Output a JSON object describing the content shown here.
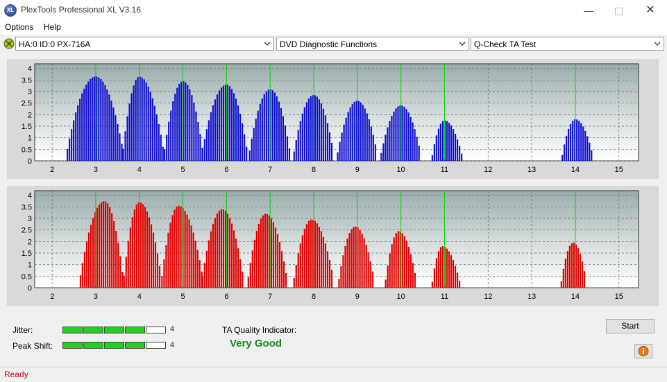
{
  "window": {
    "title": "PlexTools Professional XL V3.16",
    "icon_text": "XL"
  },
  "menu": [
    "Options",
    "Help"
  ],
  "toolbar": {
    "drive": "HA:0 ID:0  PX-716A",
    "function": "DVD Diagnostic Functions",
    "test": "Q-Check TA Test"
  },
  "chart_data": [
    {
      "type": "bar",
      "name_color": "#1010d0",
      "x_ticks": [
        2,
        3,
        4,
        5,
        6,
        7,
        8,
        9,
        10,
        11,
        12,
        13,
        14,
        15
      ],
      "y_ticks": [
        0,
        0.5,
        1,
        1.5,
        2,
        2.5,
        3,
        3.5,
        4
      ],
      "ylim": [
        0,
        4.2
      ],
      "xlim": [
        1.6,
        15.45
      ],
      "grid": true,
      "peaks": [
        {
          "center": 3.0,
          "height": 3.65,
          "start": 2.35,
          "end": 3.62
        },
        {
          "center": 4.0,
          "height": 3.65,
          "start": 3.63,
          "end": 4.55
        },
        {
          "center": 5.0,
          "height": 3.45,
          "start": 4.58,
          "end": 5.45
        },
        {
          "center": 6.0,
          "height": 3.3,
          "start": 5.45,
          "end": 6.47
        },
        {
          "center": 7.0,
          "height": 3.1,
          "start": 6.53,
          "end": 7.45
        },
        {
          "center": 8.0,
          "height": 2.85,
          "start": 7.55,
          "end": 8.45
        },
        {
          "center": 9.0,
          "height": 2.6,
          "start": 8.55,
          "end": 9.45
        },
        {
          "center": 10.0,
          "height": 2.4,
          "start": 9.55,
          "end": 10.45
        },
        {
          "center": 11.0,
          "height": 1.75,
          "start": 10.72,
          "end": 11.4
        },
        {
          "center": 14.0,
          "height": 1.8,
          "start": 13.7,
          "end": 14.4
        }
      ],
      "green_lines": [
        3,
        4,
        5,
        6,
        7,
        8,
        9,
        10,
        11,
        14
      ]
    },
    {
      "type": "bar",
      "name_color": "#e00000",
      "x_ticks": [
        2,
        3,
        4,
        5,
        6,
        7,
        8,
        9,
        10,
        11,
        12,
        13,
        14,
        15
      ],
      "y_ticks": [
        0,
        0.5,
        1,
        1.5,
        2,
        2.5,
        3,
        3.5,
        4
      ],
      "ylim": [
        0,
        4.2
      ],
      "xlim": [
        1.6,
        15.45
      ],
      "grid": true,
      "peaks": [
        {
          "center": 3.2,
          "height": 3.75,
          "start": 2.65,
          "end": 3.62
        },
        {
          "center": 4.0,
          "height": 3.7,
          "start": 3.65,
          "end": 4.5
        },
        {
          "center": 4.9,
          "height": 3.55,
          "start": 4.52,
          "end": 5.45
        },
        {
          "center": 5.9,
          "height": 3.4,
          "start": 5.45,
          "end": 6.38
        },
        {
          "center": 6.9,
          "height": 3.2,
          "start": 6.5,
          "end": 7.38
        },
        {
          "center": 7.95,
          "height": 2.95,
          "start": 7.55,
          "end": 8.45
        },
        {
          "center": 8.95,
          "height": 2.65,
          "start": 8.58,
          "end": 9.38
        },
        {
          "center": 9.95,
          "height": 2.45,
          "start": 9.65,
          "end": 10.35
        },
        {
          "center": 10.95,
          "height": 1.8,
          "start": 10.72,
          "end": 11.35
        },
        {
          "center": 13.95,
          "height": 1.95,
          "start": 13.68,
          "end": 14.25
        }
      ],
      "green_lines": [
        3,
        4,
        5,
        6,
        7,
        8,
        9,
        10,
        11,
        14
      ]
    }
  ],
  "quality": {
    "jitter_label": "Jitter:",
    "jitter_value": "4",
    "jitter_level": 4,
    "peak_shift_label": "Peak Shift:",
    "peak_shift_value": "4",
    "peak_shift_level": 4,
    "ta_label": "TA Quality Indicator:",
    "ta_value": "Very Good"
  },
  "buttons": {
    "start": "Start"
  },
  "status": "Ready"
}
